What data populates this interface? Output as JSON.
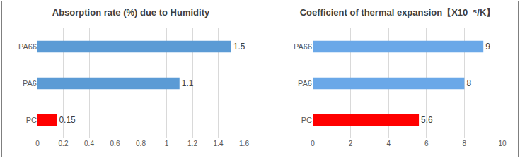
{
  "chart_data": [
    {
      "type": "bar",
      "orientation": "horizontal",
      "title": "Absorption rate (%) due to Humidity",
      "categories": [
        "PA66",
        "PA6",
        "PC"
      ],
      "values": [
        1.5,
        1.1,
        0.15
      ],
      "colors": [
        "#5b9bd5",
        "#5b9bd5",
        "#ff0000"
      ],
      "xlim": [
        0,
        1.6
      ],
      "xticks": [
        0,
        0.2,
        0.4,
        0.6,
        0.8,
        1,
        1.2,
        1.4,
        1.6
      ],
      "grid": true,
      "data_labels": true
    },
    {
      "type": "bar",
      "orientation": "horizontal",
      "title": "Coefficient of thermal expansion【X10⁻⁵/K】",
      "categories": [
        "PA66",
        "PA6",
        "PC"
      ],
      "values": [
        9,
        8,
        5.6
      ],
      "colors": [
        "#6aa8e8",
        "#6aa8e8",
        "#ff0000"
      ],
      "xlim": [
        0,
        10
      ],
      "xticks": [
        0,
        2,
        4,
        6,
        8,
        10
      ],
      "grid": true,
      "data_labels": true
    }
  ]
}
